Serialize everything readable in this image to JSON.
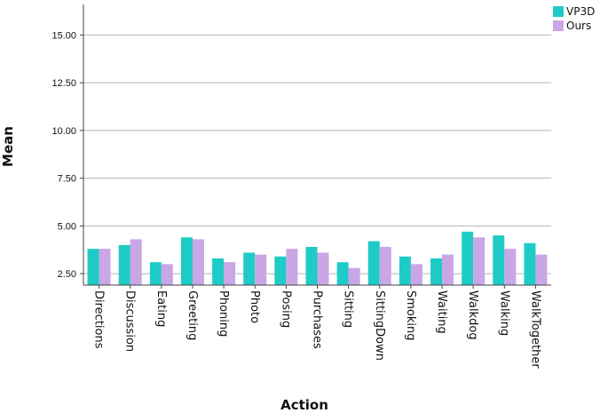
{
  "chart_data": {
    "type": "bar",
    "xlabel": "Action",
    "ylabel": "Mean",
    "ylim": [
      1.9,
      16.6
    ],
    "yticks": [
      2.5,
      5.0,
      7.5,
      10.0,
      12.5,
      15.0
    ],
    "ytick_labels": [
      "2.50",
      "5.00",
      "7.50",
      "10.00",
      "12.50",
      "15.00"
    ],
    "grid": "horizontal",
    "legend_position": "top-right",
    "categories": [
      "Directions",
      "Discussion",
      "Eating",
      "Greeting",
      "Phoning",
      "Photo",
      "Posing",
      "Purchases",
      "Sitting",
      "SittingDown",
      "Smoking",
      "Waiting",
      "Walkdog",
      "Walking",
      "WalkTogether"
    ],
    "series": [
      {
        "name": "VP3D",
        "color": "#1fcbc6",
        "values": [
          3.8,
          4.0,
          3.1,
          4.4,
          3.3,
          3.6,
          3.4,
          3.9,
          3.1,
          4.2,
          3.4,
          3.3,
          4.7,
          4.5,
          4.1
        ]
      },
      {
        "name": "Ours",
        "color": "#c9a6e6",
        "values": [
          3.8,
          4.3,
          3.0,
          4.3,
          3.1,
          3.5,
          3.8,
          3.6,
          2.8,
          3.9,
          3.0,
          3.5,
          4.4,
          3.8,
          3.5
        ]
      }
    ]
  }
}
